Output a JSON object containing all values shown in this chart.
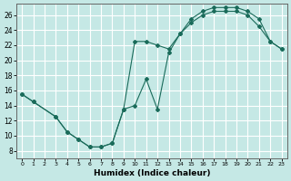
{
  "xlabel": "Humidex (Indice chaleur)",
  "background_color": "#c5e8e5",
  "grid_color": "#ffffff",
  "line_color": "#1a6b5a",
  "xlim": [
    -0.5,
    23.5
  ],
  "ylim": [
    7,
    27.5
  ],
  "xticks": [
    0,
    1,
    2,
    3,
    4,
    5,
    6,
    7,
    8,
    9,
    10,
    11,
    12,
    13,
    14,
    15,
    16,
    17,
    18,
    19,
    20,
    21,
    22,
    23
  ],
  "yticks": [
    8,
    10,
    12,
    14,
    16,
    18,
    20,
    22,
    24,
    26
  ],
  "series1_x": [
    0,
    1,
    3,
    4,
    5,
    6,
    7,
    8,
    9,
    10,
    11,
    12,
    13,
    14,
    15,
    16,
    17,
    18,
    19,
    20,
    21,
    22,
    23
  ],
  "series1_y": [
    15.5,
    14.5,
    12.5,
    10.5,
    9.5,
    8.5,
    8.5,
    9.0,
    13.5,
    22.5,
    22.5,
    22.0,
    21.5,
    23.5,
    25.0,
    26.0,
    26.5,
    26.5,
    26.5,
    26.0,
    24.5,
    22.5,
    21.5
  ],
  "series2_x": [
    0,
    1,
    3,
    4,
    5,
    6,
    7,
    8,
    9,
    10,
    11,
    12,
    13,
    14,
    15,
    16,
    17,
    18,
    19,
    20,
    21,
    22,
    23
  ],
  "series2_y": [
    15.5,
    14.5,
    12.5,
    10.5,
    9.5,
    8.5,
    8.5,
    9.0,
    13.5,
    14.0,
    17.5,
    13.5,
    21.0,
    23.5,
    25.5,
    26.5,
    27.0,
    27.0,
    27.0,
    26.5,
    25.5,
    22.5,
    21.5
  ]
}
